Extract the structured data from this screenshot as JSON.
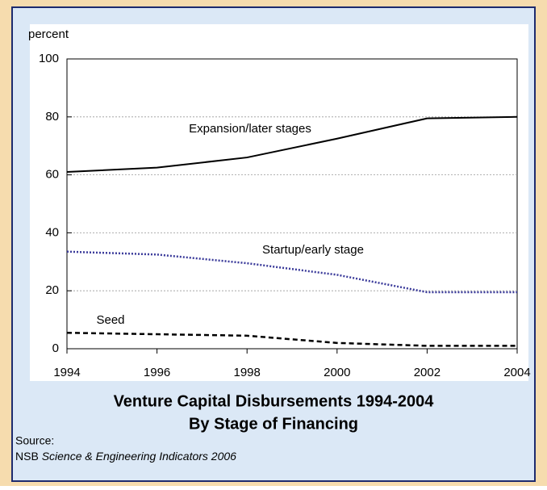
{
  "chart_data": {
    "type": "line",
    "y_label": "percent",
    "title": "Venture Capital Disbursements 1994-2004",
    "subtitle": "By Stage of Financing",
    "x": [
      1994,
      1996,
      1998,
      2000,
      2002,
      2004
    ],
    "series": [
      {
        "name": "Expansion/later stages",
        "color": "#000000",
        "style": "solid",
        "values": [
          61,
          62.5,
          66,
          72.5,
          79.5,
          80
        ]
      },
      {
        "name": "Startup/early stage",
        "color": "#3a3a9a",
        "style": "dotted",
        "values": [
          33.5,
          32.5,
          29.5,
          25.5,
          19.5,
          19.5
        ]
      },
      {
        "name": "Seed",
        "color": "#000000",
        "style": "dashed",
        "values": [
          5.5,
          5,
          4.5,
          2,
          1,
          1
        ]
      }
    ],
    "xlim": [
      1994,
      2004
    ],
    "xticks": [
      1994,
      1996,
      1998,
      2000,
      2002,
      2004
    ],
    "ylim": [
      0,
      100
    ],
    "yticks": [
      0,
      20,
      40,
      60,
      80,
      100
    ],
    "grid": true,
    "source": {
      "label": "Source:",
      "publisher": "NSB",
      "title": "Science & Engineering Indicators 2006"
    }
  }
}
